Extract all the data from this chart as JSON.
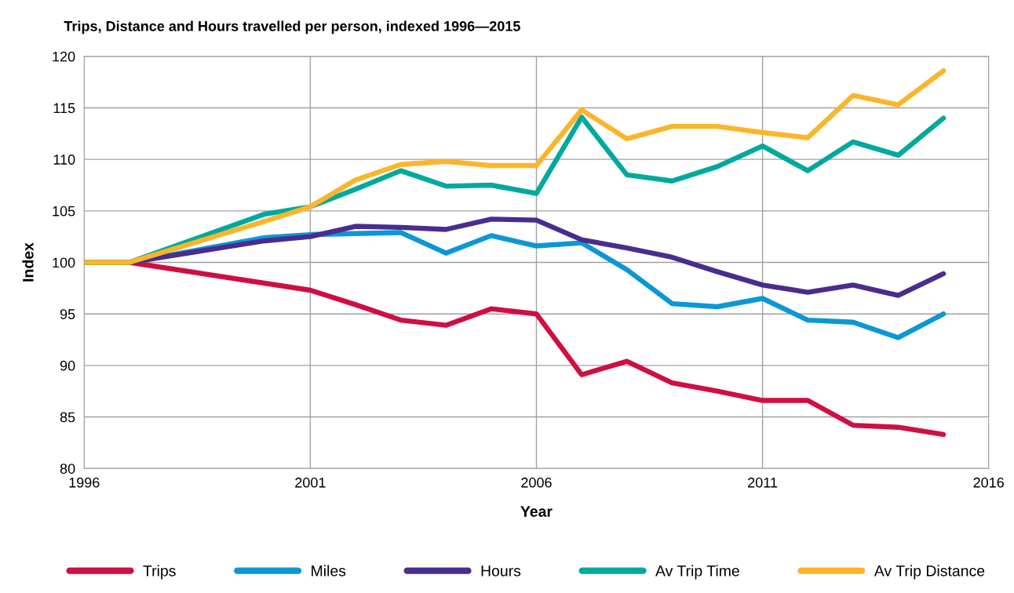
{
  "chart_data": {
    "type": "line",
    "title": "Trips, Distance and Hours travelled per person, indexed 1996—2015",
    "xlabel": "Year",
    "ylabel": "Index",
    "xlim": [
      1996,
      2016
    ],
    "xticks": [
      1996,
      2001,
      2006,
      2011,
      2016
    ],
    "ylim": [
      80,
      120
    ],
    "yticks": [
      80,
      85,
      90,
      95,
      100,
      105,
      110,
      115,
      120
    ],
    "grid": true,
    "legend": "bottom",
    "marker": "none",
    "line_style": "solid",
    "series": [
      {
        "name": "Trips",
        "color": "#cf0f3f",
        "x": [
          1996,
          1997,
          2001,
          2002,
          2003,
          2004,
          2005,
          2006,
          2007,
          2008,
          2009,
          2010,
          2011,
          2012,
          2013,
          2014,
          2015
        ],
        "values": [
          100,
          100,
          97.3,
          95.9,
          94.4,
          93.9,
          95.5,
          95.0,
          89.1,
          90.4,
          88.3,
          87.5,
          86.6,
          86.6,
          84.2,
          84.0,
          83.3
        ]
      },
      {
        "name": "Miles",
        "color": "#0b97d6",
        "x": [
          1996,
          1997,
          2000,
          2001,
          2002,
          2003,
          2004,
          2005,
          2006,
          2007,
          2008,
          2009,
          2010,
          2011,
          2012,
          2013,
          2014,
          2015
        ],
        "values": [
          100,
          100,
          102.4,
          102.7,
          102.8,
          102.9,
          100.9,
          102.6,
          101.6,
          101.9,
          99.3,
          96.0,
          95.7,
          96.5,
          94.4,
          94.2,
          92.7,
          95.0
        ]
      },
      {
        "name": "Hours",
        "color": "#4a2c8f",
        "x": [
          1996,
          1997,
          2000,
          2001,
          2002,
          2003,
          2004,
          2005,
          2006,
          2007,
          2008,
          2009,
          2010,
          2011,
          2012,
          2013,
          2014,
          2015
        ],
        "values": [
          100,
          100,
          102.1,
          102.5,
          103.5,
          103.4,
          103.2,
          104.2,
          104.1,
          102.2,
          101.4,
          100.5,
          99.1,
          97.8,
          97.1,
          97.8,
          96.8,
          98.9
        ]
      },
      {
        "name": "Av Trip Time",
        "color": "#00a99d",
        "x": [
          1996,
          1997,
          2000,
          2001,
          2002,
          2003,
          2004,
          2005,
          2006,
          2007,
          2008,
          2009,
          2010,
          2011,
          2012,
          2013,
          2014,
          2015
        ],
        "values": [
          100,
          100,
          104.7,
          105.4,
          107.1,
          108.9,
          107.4,
          107.5,
          106.7,
          114.1,
          108.5,
          107.9,
          109.3,
          111.3,
          108.9,
          111.7,
          110.4,
          114.0
        ]
      },
      {
        "name": "Av Trip Distance",
        "color": "#fbb52a",
        "x": [
          1996,
          1997,
          2000,
          2001,
          2002,
          2003,
          2004,
          2005,
          2006,
          2007,
          2008,
          2009,
          2010,
          2011,
          2012,
          2013,
          2014,
          2015
        ],
        "values": [
          100,
          100,
          104.0,
          105.4,
          108.0,
          109.5,
          109.8,
          109.4,
          109.4,
          114.8,
          112.0,
          113.2,
          113.2,
          112.6,
          112.1,
          116.2,
          115.3,
          118.6
        ]
      }
    ]
  }
}
